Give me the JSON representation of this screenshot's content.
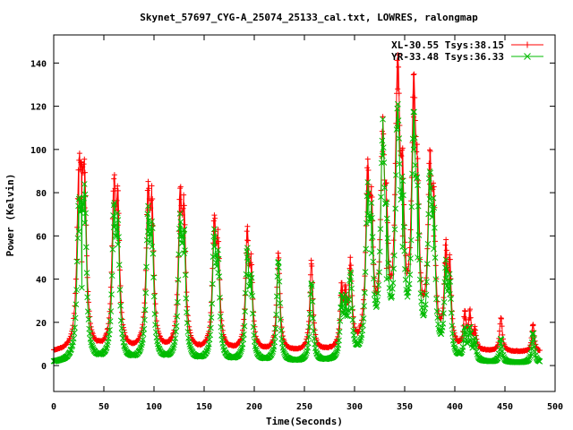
{
  "chart_data": {
    "type": "line",
    "title": "Skynet_57697_CYG-A_25074_25133_cal.txt, LOWRES, ralongmap",
    "xlabel": "Time(Seconds)",
    "ylabel": "Power (Kelvin)",
    "xlim": [
      0,
      500
    ],
    "ylim": [
      -12,
      153
    ],
    "xticks": [
      0,
      50,
      100,
      150,
      200,
      250,
      300,
      350,
      400,
      450,
      500
    ],
    "yticks": [
      0,
      20,
      40,
      60,
      80,
      100,
      120,
      140
    ],
    "grid": false,
    "legend_position": "top-right",
    "series": [
      {
        "name": "XL-30.55 Tsys:38.15",
        "color": "#ff0000",
        "marker": "plus",
        "baseline": 6,
        "peaks": [
          [
            25,
            77
          ],
          [
            28,
            48
          ],
          [
            31,
            73
          ],
          [
            60,
            75
          ],
          [
            64,
            65
          ],
          [
            94,
            72
          ],
          [
            98,
            65
          ],
          [
            126,
            71
          ],
          [
            130,
            62
          ],
          [
            160,
            62
          ],
          [
            164,
            50
          ],
          [
            193,
            58
          ],
          [
            197,
            40
          ],
          [
            224,
            52
          ],
          [
            257,
            47
          ],
          [
            287,
            32
          ],
          [
            291,
            28
          ],
          [
            296,
            43
          ],
          [
            313,
            79
          ],
          [
            317,
            58
          ],
          [
            328,
            99
          ],
          [
            332,
            45
          ],
          [
            343,
            128
          ],
          [
            348,
            60
          ],
          [
            359,
            115
          ],
          [
            363,
            58
          ],
          [
            375,
            84
          ],
          [
            379,
            60
          ],
          [
            391,
            47
          ],
          [
            395,
            40
          ],
          [
            410,
            22
          ],
          [
            415,
            22
          ],
          [
            420,
            15
          ],
          [
            446,
            22
          ],
          [
            478,
            19
          ]
        ]
      },
      {
        "name": "YR-33.48 Tsys:36.33",
        "color": "#00bb00",
        "marker": "cross",
        "baseline": 1,
        "peaks": [
          [
            25,
            62
          ],
          [
            28,
            36
          ],
          [
            31,
            66
          ],
          [
            60,
            64
          ],
          [
            64,
            56
          ],
          [
            94,
            62
          ],
          [
            98,
            55
          ],
          [
            126,
            60
          ],
          [
            130,
            52
          ],
          [
            160,
            55
          ],
          [
            164,
            43
          ],
          [
            193,
            50
          ],
          [
            197,
            33
          ],
          [
            224,
            48
          ],
          [
            257,
            38
          ],
          [
            287,
            27
          ],
          [
            291,
            23
          ],
          [
            296,
            39
          ],
          [
            313,
            70
          ],
          [
            317,
            52
          ],
          [
            328,
            97
          ],
          [
            332,
            40
          ],
          [
            343,
            110
          ],
          [
            348,
            55
          ],
          [
            359,
            100
          ],
          [
            363,
            50
          ],
          [
            375,
            77
          ],
          [
            379,
            54
          ],
          [
            391,
            40
          ],
          [
            395,
            33
          ],
          [
            410,
            15
          ],
          [
            415,
            15
          ],
          [
            420,
            10
          ],
          [
            446,
            12
          ],
          [
            478,
            15
          ]
        ]
      }
    ]
  }
}
